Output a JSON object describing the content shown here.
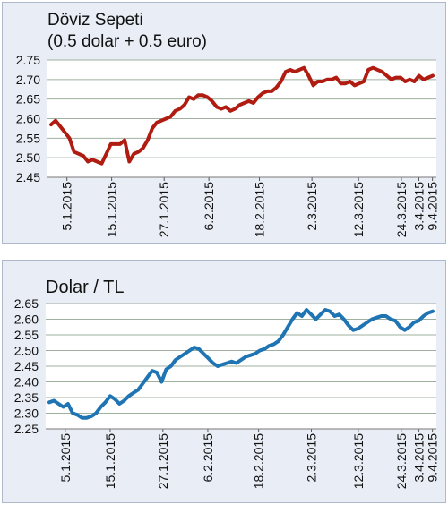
{
  "colors": {
    "panel_bg": "#e9eef6",
    "plot_bg": "#ffffff",
    "grid": "#9fb09f",
    "line_basket": "#b01c12",
    "line_usd": "#1f74b4"
  },
  "chart_data": [
    {
      "type": "line",
      "title": "Döviz Sepeti",
      "subtitle": "(0.5 dolar + 0.5 euro)",
      "x_tick_labels": [
        "5.1.2015",
        "15.1.2015",
        "27.1.2015",
        "6.2.2015",
        "18.2.2015",
        "2.3.2015",
        "12.3.2015",
        "24.3.2015",
        "3.4.2015",
        "9.4.2015"
      ],
      "y_tick_labels": [
        "2.75",
        "2.70",
        "2.65",
        "2.60",
        "2.55",
        "2.50",
        "2.45"
      ],
      "ylim": [
        2.45,
        2.75
      ],
      "grid": true,
      "series": [
        {
          "values": [
            2.585,
            2.595,
            2.58,
            2.565,
            2.55,
            2.515,
            2.51,
            2.505,
            2.49,
            2.495,
            2.49,
            2.485,
            2.51,
            2.535,
            2.535,
            2.535,
            2.545,
            2.49,
            2.51,
            2.515,
            2.525,
            2.545,
            2.575,
            2.59,
            2.595,
            2.6,
            2.605,
            2.62,
            2.625,
            2.635,
            2.655,
            2.65,
            2.66,
            2.66,
            2.655,
            2.645,
            2.63,
            2.625,
            2.63,
            2.62,
            2.625,
            2.635,
            2.64,
            2.645,
            2.64,
            2.655,
            2.665,
            2.67,
            2.67,
            2.68,
            2.695,
            2.72,
            2.725,
            2.72,
            2.725,
            2.73,
            2.71,
            2.685,
            2.695,
            2.695,
            2.7,
            2.7,
            2.705,
            2.69,
            2.69,
            2.695,
            2.685,
            2.69,
            2.695,
            2.725,
            2.73,
            2.725,
            2.72,
            2.71,
            2.7,
            2.705,
            2.705,
            2.695,
            2.7,
            2.695,
            2.71,
            2.7,
            2.705,
            2.71
          ]
        }
      ]
    },
    {
      "type": "line",
      "title": "Dolar / TL",
      "x_tick_labels": [
        "5.1.2015",
        "15.1.2015",
        "27.1.2015",
        "6.2.2015",
        "18.2.2015",
        "2.3.2015",
        "12.3.2015",
        "24.3.2015",
        "3.4.2015",
        "9.4.2015"
      ],
      "y_tick_labels": [
        "2.65",
        "2.60",
        "2.55",
        "2.50",
        "2.45",
        "2.40",
        "2.35",
        "2.30",
        "2.25"
      ],
      "ylim": [
        2.25,
        2.65
      ],
      "grid": true,
      "series": [
        {
          "values": [
            2.335,
            2.34,
            2.33,
            2.32,
            2.33,
            2.3,
            2.295,
            2.285,
            2.285,
            2.29,
            2.3,
            2.32,
            2.335,
            2.355,
            2.345,
            2.33,
            2.34,
            2.355,
            2.365,
            2.375,
            2.395,
            2.415,
            2.435,
            2.43,
            2.4,
            2.44,
            2.45,
            2.47,
            2.48,
            2.49,
            2.5,
            2.51,
            2.505,
            2.49,
            2.475,
            2.46,
            2.45,
            2.455,
            2.46,
            2.465,
            2.46,
            2.47,
            2.48,
            2.485,
            2.49,
            2.5,
            2.505,
            2.515,
            2.52,
            2.53,
            2.55,
            2.575,
            2.6,
            2.62,
            2.61,
            2.63,
            2.615,
            2.6,
            2.615,
            2.63,
            2.625,
            2.61,
            2.615,
            2.6,
            2.58,
            2.565,
            2.57,
            2.58,
            2.59,
            2.6,
            2.605,
            2.61,
            2.61,
            2.6,
            2.595,
            2.575,
            2.565,
            2.575,
            2.59,
            2.595,
            2.61,
            2.62,
            2.625
          ]
        }
      ]
    }
  ]
}
